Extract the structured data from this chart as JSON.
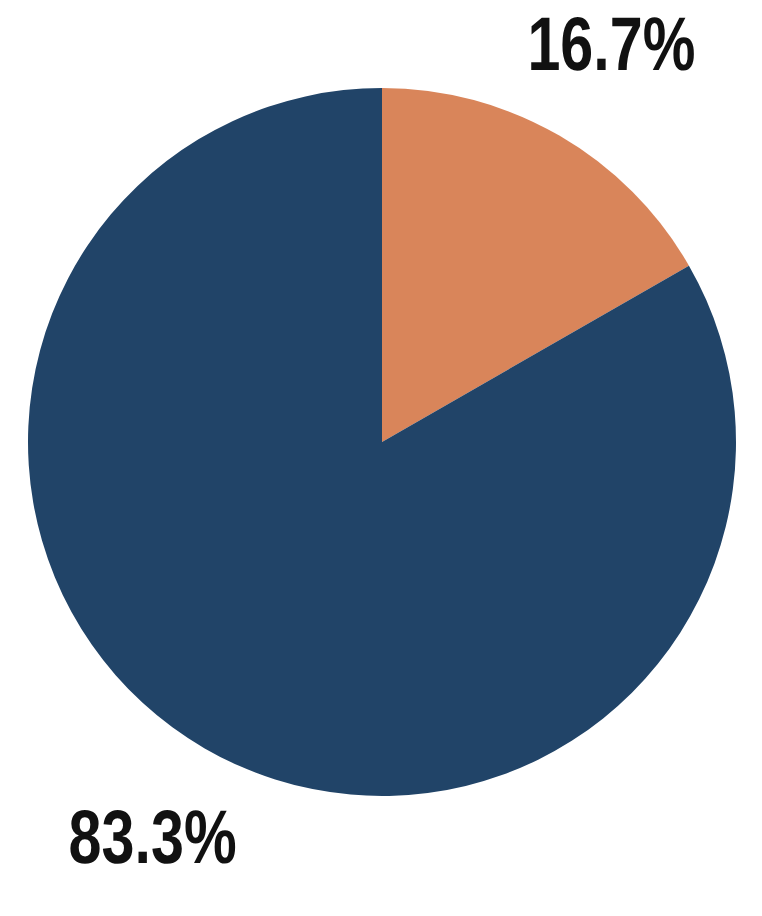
{
  "chart_data": {
    "type": "pie",
    "categories": [
      null,
      null
    ],
    "values": [
      16.7,
      83.3
    ],
    "colors": [
      "#d9855a",
      "#214468"
    ],
    "value_labels": [
      "16.7%",
      "83.3%"
    ]
  }
}
